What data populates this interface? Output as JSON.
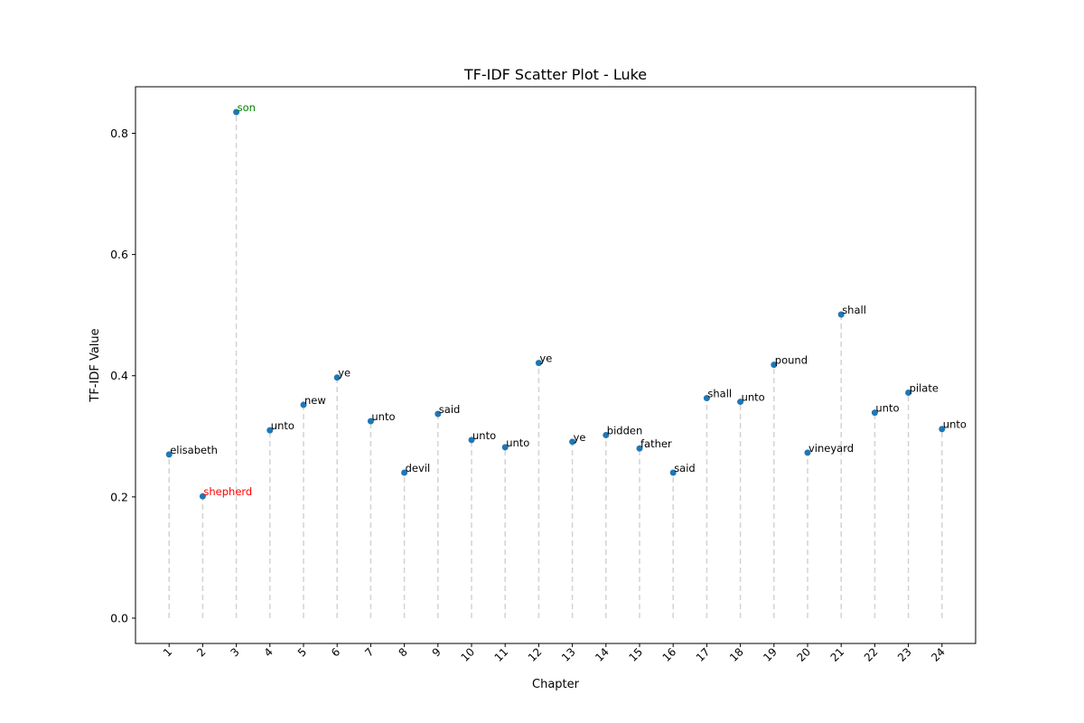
{
  "chart_data": {
    "type": "scatter",
    "title": "TF-IDF Scatter Plot - Luke",
    "xlabel": "Chapter",
    "ylabel": "TF-IDF Value",
    "x": [
      1,
      2,
      3,
      4,
      5,
      6,
      7,
      8,
      9,
      10,
      11,
      12,
      13,
      14,
      15,
      16,
      17,
      18,
      19,
      20,
      21,
      22,
      23,
      24
    ],
    "xticks": [
      "1",
      "2",
      "3",
      "4",
      "5",
      "6",
      "7",
      "8",
      "9",
      "10",
      "11",
      "12",
      "13",
      "14",
      "15",
      "16",
      "17",
      "18",
      "19",
      "20",
      "21",
      "22",
      "23",
      "24"
    ],
    "y": [
      0.27,
      0.201,
      0.835,
      0.31,
      0.352,
      0.397,
      0.325,
      0.24,
      0.337,
      0.294,
      0.282,
      0.421,
      0.291,
      0.302,
      0.28,
      0.24,
      0.363,
      0.357,
      0.418,
      0.273,
      0.501,
      0.339,
      0.372,
      0.312
    ],
    "labels": [
      "elisabeth",
      "shepherd",
      "son",
      "unto",
      "new",
      "ye",
      "unto",
      "devil",
      "said",
      "unto",
      "unto",
      "ye",
      "ye",
      "bidden",
      "father",
      "said",
      "shall",
      "unto",
      "pound",
      "vineyard",
      "shall",
      "unto",
      "pilate",
      "unto"
    ],
    "highlight": {
      "min_index": 1,
      "max_index": 2,
      "min_color": "#ff0000",
      "max_color": "#008000"
    },
    "yticks": [
      0.0,
      0.2,
      0.4,
      0.6,
      0.8
    ],
    "ytick_labels": [
      "0.0",
      "0.2",
      "0.4",
      "0.6",
      "0.8"
    ],
    "ylim": [
      -0.0418,
      0.8768
    ],
    "xlim": [
      0.0,
      25.0
    ],
    "point_color": "#1f77b4",
    "stem_color": "#d3d3d3",
    "stem_style": "dashed",
    "grid": false
  }
}
